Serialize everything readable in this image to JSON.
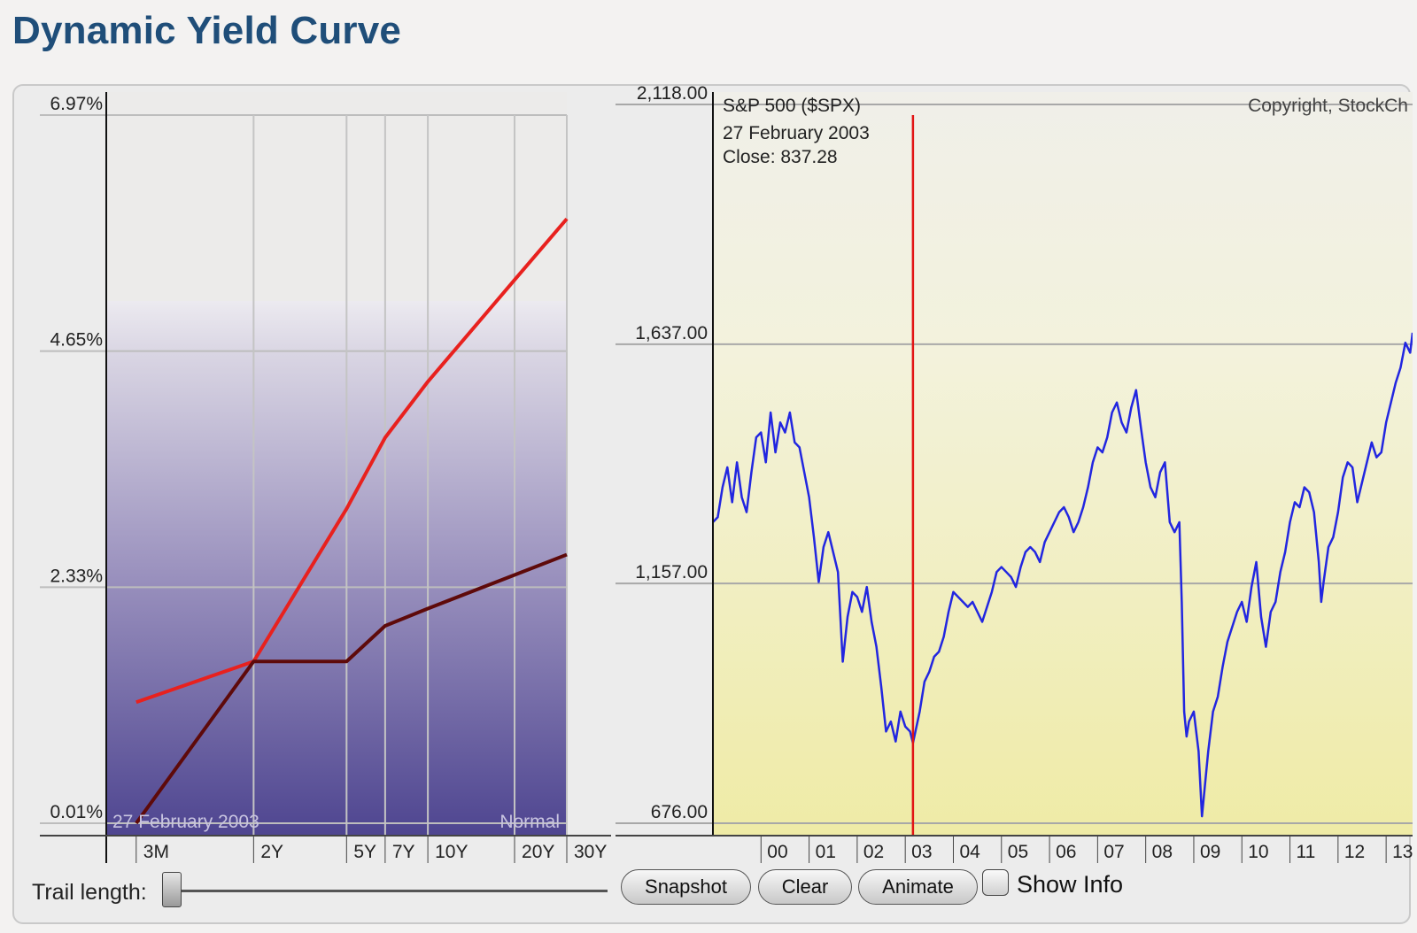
{
  "page": {
    "title": "Dynamic Yield Curve"
  },
  "chart_data": [
    {
      "type": "line",
      "ticks": [
        "0.01%",
        "2.33%",
        "4.65%",
        "6.97%"
      ],
      "ylim": [
        0.01,
        6.97
      ],
      "x": [
        "3M",
        "2Y",
        "5Y",
        "7Y",
        "10Y",
        "20Y",
        "30Y"
      ],
      "x_years": [
        0.25,
        2,
        5,
        7,
        10,
        20,
        30
      ],
      "overlay_date": "27 February 2003",
      "overlay_shape": "Normal",
      "series": [
        {
          "color": "#e8211e",
          "values": [
            1.2,
            1.6,
            3.1,
            3.8,
            4.35,
            5.35,
            5.95
          ]
        },
        {
          "color": "#5e0a0a",
          "values": [
            0.01,
            1.6,
            1.6,
            1.95,
            2.12,
            2.45,
            2.65
          ]
        }
      ],
      "grid": true
    },
    {
      "type": "line",
      "title": "S&P 500 ($SPX)",
      "copyright": "Copyright, StockCh",
      "ticks": [
        "676.00",
        "1,157.00",
        "1,637.00",
        "2,118.00"
      ],
      "ylim": [
        676,
        2118
      ],
      "x_labels": [
        "00",
        "01",
        "02",
        "03",
        "04",
        "05",
        "06",
        "07",
        "08",
        "09",
        "10",
        "11",
        "12",
        "13"
      ],
      "cursor": {
        "date": "27  February 2003",
        "close": "Close: 837.28",
        "x_year": 2003.16
      },
      "series": [
        {
          "color": "#2226e0",
          "points": [
            [
              1999.0,
              1280
            ],
            [
              1999.1,
              1290
            ],
            [
              1999.2,
              1350
            ],
            [
              1999.3,
              1390
            ],
            [
              1999.4,
              1320
            ],
            [
              1999.5,
              1400
            ],
            [
              1999.6,
              1330
            ],
            [
              1999.7,
              1300
            ],
            [
              1999.8,
              1380
            ],
            [
              1999.9,
              1450
            ],
            [
              2000.0,
              1460
            ],
            [
              2000.1,
              1400
            ],
            [
              2000.2,
              1500
            ],
            [
              2000.3,
              1420
            ],
            [
              2000.4,
              1480
            ],
            [
              2000.5,
              1460
            ],
            [
              2000.6,
              1500
            ],
            [
              2000.7,
              1440
            ],
            [
              2000.8,
              1430
            ],
            [
              2000.9,
              1380
            ],
            [
              2001.0,
              1330
            ],
            [
              2001.1,
              1250
            ],
            [
              2001.2,
              1160
            ],
            [
              2001.3,
              1230
            ],
            [
              2001.4,
              1260
            ],
            [
              2001.5,
              1220
            ],
            [
              2001.6,
              1180
            ],
            [
              2001.7,
              1000
            ],
            [
              2001.8,
              1090
            ],
            [
              2001.9,
              1140
            ],
            [
              2002.0,
              1130
            ],
            [
              2002.1,
              1100
            ],
            [
              2002.2,
              1150
            ],
            [
              2002.3,
              1080
            ],
            [
              2002.4,
              1030
            ],
            [
              2002.5,
              950
            ],
            [
              2002.6,
              860
            ],
            [
              2002.7,
              880
            ],
            [
              2002.8,
              840
            ],
            [
              2002.9,
              900
            ],
            [
              2003.0,
              870
            ],
            [
              2003.1,
              860
            ],
            [
              2003.16,
              837
            ],
            [
              2003.3,
              900
            ],
            [
              2003.4,
              960
            ],
            [
              2003.5,
              980
            ],
            [
              2003.6,
              1010
            ],
            [
              2003.7,
              1020
            ],
            [
              2003.8,
              1050
            ],
            [
              2003.9,
              1100
            ],
            [
              2004.0,
              1140
            ],
            [
              2004.1,
              1130
            ],
            [
              2004.2,
              1120
            ],
            [
              2004.3,
              1110
            ],
            [
              2004.4,
              1120
            ],
            [
              2004.5,
              1100
            ],
            [
              2004.6,
              1080
            ],
            [
              2004.7,
              1110
            ],
            [
              2004.8,
              1140
            ],
            [
              2004.9,
              1180
            ],
            [
              2005.0,
              1190
            ],
            [
              2005.1,
              1180
            ],
            [
              2005.2,
              1170
            ],
            [
              2005.3,
              1150
            ],
            [
              2005.4,
              1190
            ],
            [
              2005.5,
              1220
            ],
            [
              2005.6,
              1230
            ],
            [
              2005.7,
              1220
            ],
            [
              2005.8,
              1200
            ],
            [
              2005.9,
              1240
            ],
            [
              2006.0,
              1260
            ],
            [
              2006.1,
              1280
            ],
            [
              2006.2,
              1300
            ],
            [
              2006.3,
              1310
            ],
            [
              2006.4,
              1290
            ],
            [
              2006.5,
              1260
            ],
            [
              2006.6,
              1280
            ],
            [
              2006.7,
              1310
            ],
            [
              2006.8,
              1350
            ],
            [
              2006.9,
              1400
            ],
            [
              2007.0,
              1430
            ],
            [
              2007.1,
              1420
            ],
            [
              2007.2,
              1450
            ],
            [
              2007.3,
              1500
            ],
            [
              2007.4,
              1520
            ],
            [
              2007.5,
              1480
            ],
            [
              2007.6,
              1460
            ],
            [
              2007.7,
              1510
            ],
            [
              2007.8,
              1545
            ],
            [
              2007.9,
              1470
            ],
            [
              2008.0,
              1400
            ],
            [
              2008.1,
              1350
            ],
            [
              2008.2,
              1330
            ],
            [
              2008.3,
              1380
            ],
            [
              2008.4,
              1400
            ],
            [
              2008.5,
              1280
            ],
            [
              2008.6,
              1260
            ],
            [
              2008.7,
              1280
            ],
            [
              2008.75,
              1120
            ],
            [
              2008.8,
              900
            ],
            [
              2008.85,
              850
            ],
            [
              2008.9,
              880
            ],
            [
              2009.0,
              900
            ],
            [
              2009.1,
              820
            ],
            [
              2009.17,
              690
            ],
            [
              2009.3,
              820
            ],
            [
              2009.4,
              900
            ],
            [
              2009.5,
              930
            ],
            [
              2009.6,
              990
            ],
            [
              2009.7,
              1040
            ],
            [
              2009.8,
              1070
            ],
            [
              2009.9,
              1100
            ],
            [
              2010.0,
              1120
            ],
            [
              2010.1,
              1080
            ],
            [
              2010.2,
              1150
            ],
            [
              2010.3,
              1200
            ],
            [
              2010.4,
              1090
            ],
            [
              2010.5,
              1030
            ],
            [
              2010.6,
              1100
            ],
            [
              2010.7,
              1120
            ],
            [
              2010.8,
              1180
            ],
            [
              2010.9,
              1220
            ],
            [
              2011.0,
              1280
            ],
            [
              2011.1,
              1320
            ],
            [
              2011.2,
              1310
            ],
            [
              2011.3,
              1350
            ],
            [
              2011.4,
              1340
            ],
            [
              2011.5,
              1300
            ],
            [
              2011.6,
              1200
            ],
            [
              2011.65,
              1120
            ],
            [
              2011.7,
              1160
            ],
            [
              2011.8,
              1230
            ],
            [
              2011.9,
              1250
            ],
            [
              2012.0,
              1300
            ],
            [
              2012.1,
              1370
            ],
            [
              2012.2,
              1400
            ],
            [
              2012.3,
              1390
            ],
            [
              2012.4,
              1320
            ],
            [
              2012.5,
              1360
            ],
            [
              2012.6,
              1400
            ],
            [
              2012.7,
              1440
            ],
            [
              2012.8,
              1410
            ],
            [
              2012.9,
              1420
            ],
            [
              2013.0,
              1480
            ],
            [
              2013.1,
              1520
            ],
            [
              2013.2,
              1560
            ],
            [
              2013.3,
              1590
            ],
            [
              2013.4,
              1640
            ],
            [
              2013.5,
              1620
            ],
            [
              2013.55,
              1660
            ]
          ]
        }
      ]
    }
  ],
  "controls": {
    "trail_label": "Trail length:",
    "snapshot_label": "Snapshot",
    "clear_label": "Clear",
    "animate_label": "Animate",
    "show_info_label": "Show Info"
  }
}
